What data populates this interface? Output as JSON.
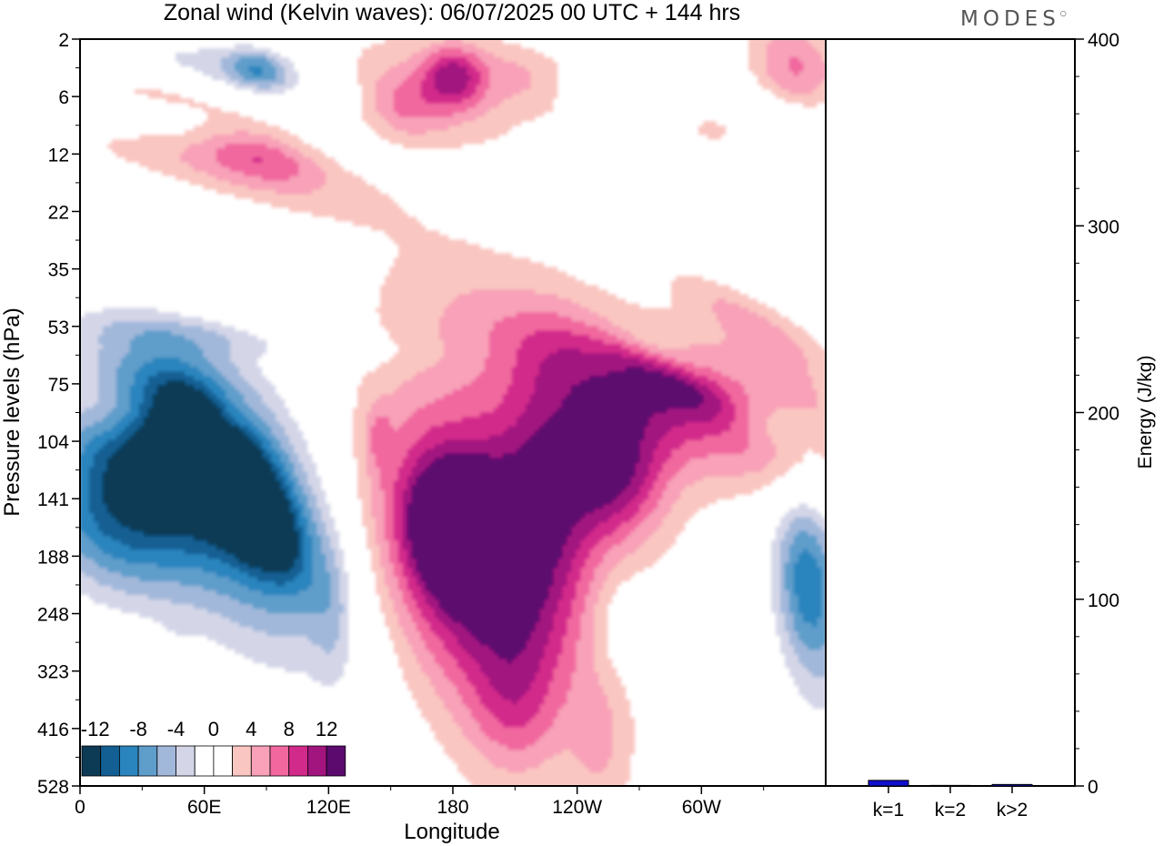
{
  "logo": "MODES",
  "chart_data": [
    {
      "type": "heatmap",
      "title": "Zonal wind (Kelvin waves):  06/07/2025  00 UTC  + 144 hrs",
      "xlabel": "Longitude",
      "ylabel": "Pressure levels (hPa)",
      "x_ticks": [
        "0",
        "60E",
        "120E",
        "180",
        "120W",
        "60W"
      ],
      "x_tick_degrees": [
        0,
        60,
        120,
        180,
        240,
        300
      ],
      "xlim": [
        0,
        360
      ],
      "y_ticks": [
        "2",
        "6",
        "12",
        "22",
        "35",
        "53",
        "75",
        "104",
        "141",
        "188",
        "248",
        "323",
        "416",
        "528"
      ],
      "y_scale": "pressure-level index (top 2 hPa, bottom 528 hPa)",
      "colorbar": {
        "labels": [
          "-12",
          "-8",
          "-4",
          "0",
          "4",
          "8",
          "12"
        ],
        "colors": [
          "#0d3a55",
          "#135f93",
          "#2a84bd",
          "#5f9dcb",
          "#a2b8da",
          "#d4d6e8",
          "#ffffff",
          "#ffffff",
          "#fac6c1",
          "#f8a1b8",
          "#f1679e",
          "#d22a8a",
          "#a2157f",
          "#5c0a6e"
        ]
      },
      "features": [
        {
          "sign": "negative",
          "lon": 48,
          "level": 8.6,
          "peak": -14
        },
        {
          "sign": "negative",
          "lon": 26,
          "level": 8.5,
          "peak": -6
        },
        {
          "sign": "negative",
          "lon": 347,
          "level": 9.2,
          "peak": -7
        },
        {
          "sign": "negative",
          "lon": 88,
          "level": 0.5,
          "peak": -8
        },
        {
          "sign": "positive",
          "lon": 183,
          "level": 8.8,
          "peak": 14
        },
        {
          "sign": "positive",
          "lon": 264,
          "level": 8.0,
          "peak": 7
        },
        {
          "sign": "positive",
          "lon": 175,
          "level": 0.7,
          "peak": 7
        },
        {
          "sign": "positive",
          "lon": 290,
          "level": 5.5,
          "peak": 6
        },
        {
          "sign": "positive",
          "lon": 355,
          "level": 0.1,
          "peak": 7
        }
      ]
    },
    {
      "type": "bar",
      "ylabel": "Energy (J/kg)",
      "categories": [
        "k=1",
        "k=2",
        "k>2"
      ],
      "values": [
        3,
        0.3,
        0.8
      ],
      "ylim": [
        0,
        400
      ],
      "y_ticks": [
        "0",
        "100",
        "200",
        "300",
        "400"
      ],
      "bar_color": "#1010d0"
    }
  ]
}
